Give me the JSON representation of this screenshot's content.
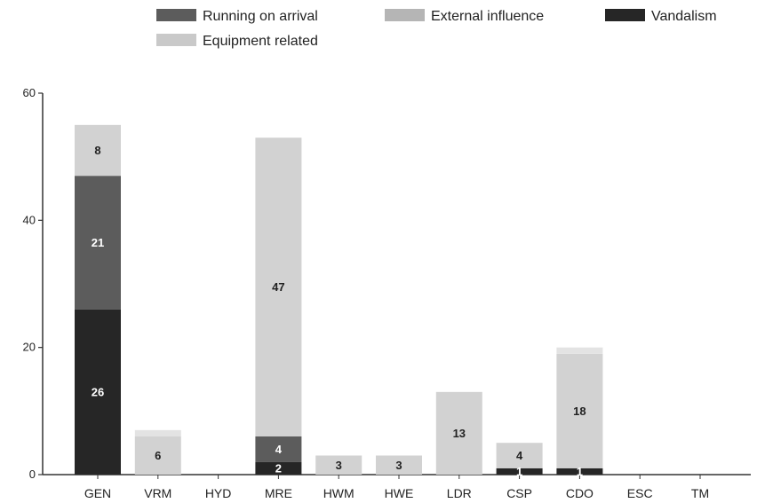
{
  "chart_data": {
    "type": "bar",
    "stacked": true,
    "title": "",
    "xlabel": "",
    "ylabel": "",
    "ylim": [
      0,
      60
    ],
    "yticks": [
      "0",
      "20",
      "40",
      "60"
    ],
    "categories": [
      "GEN",
      "VRM",
      "HYD",
      "MRE",
      "HWM",
      "HWE",
      "LDR",
      "CSP",
      "CDO",
      "ESC",
      "TM"
    ],
    "legend_position": "top",
    "series": [
      {
        "name": "Vandalism",
        "color": "#262626",
        "label_color": "#ffffff",
        "values": [
          26,
          0,
          0,
          2,
          0,
          0,
          0,
          1,
          1,
          0,
          0
        ]
      },
      {
        "name": "Running on arrival",
        "color": "#5c5c5c",
        "label_color": "#ffffff",
        "values": [
          21,
          0,
          0,
          4,
          0,
          0,
          0,
          0,
          0,
          0,
          0
        ]
      },
      {
        "name": "External influence",
        "color": "#d2d2d2",
        "label_color": "#222222",
        "values": [
          8,
          6,
          0,
          47,
          3,
          3,
          13,
          4,
          18,
          0,
          0
        ]
      },
      {
        "name": "Equipment related",
        "color": "#e3e3e3",
        "label_color": "#222222",
        "values": [
          0,
          1,
          0,
          0,
          0,
          0,
          0,
          0,
          1,
          0,
          0
        ]
      }
    ],
    "data_labels": [
      {
        "category": "GEN",
        "series": "External influence",
        "text": "8"
      },
      {
        "category": "GEN",
        "series": "Running on arrival",
        "text": "21"
      },
      {
        "category": "GEN",
        "series": "Vandalism",
        "text": "26"
      },
      {
        "category": "VRM",
        "series": "External influence",
        "text": "6"
      },
      {
        "category": "MRE",
        "series": "External influence",
        "text": "47"
      },
      {
        "category": "MRE",
        "series": "Running on arrival",
        "text": "4"
      },
      {
        "category": "MRE",
        "series": "Vandalism",
        "text": "2"
      },
      {
        "category": "HWM",
        "series": "External influence",
        "text": "3"
      },
      {
        "category": "HWE",
        "series": "External influence",
        "text": "3"
      },
      {
        "category": "LDR",
        "series": "External influence",
        "text": "13"
      },
      {
        "category": "CSP",
        "series": "External influence",
        "text": "4"
      },
      {
        "category": "CSP",
        "series": "Vandalism",
        "text": "1"
      },
      {
        "category": "CDO",
        "series": "External influence",
        "text": "18"
      },
      {
        "category": "CDO",
        "series": "Vandalism",
        "text": "1"
      }
    ],
    "legend": [
      {
        "label": "Running on arrival",
        "color": "#5c5c5c"
      },
      {
        "label": "External influence",
        "color": "#b5b5b5"
      },
      {
        "label": "Vandalism",
        "color": "#262626"
      },
      {
        "label": "Equipment related",
        "color": "#c9c9c9"
      }
    ]
  }
}
